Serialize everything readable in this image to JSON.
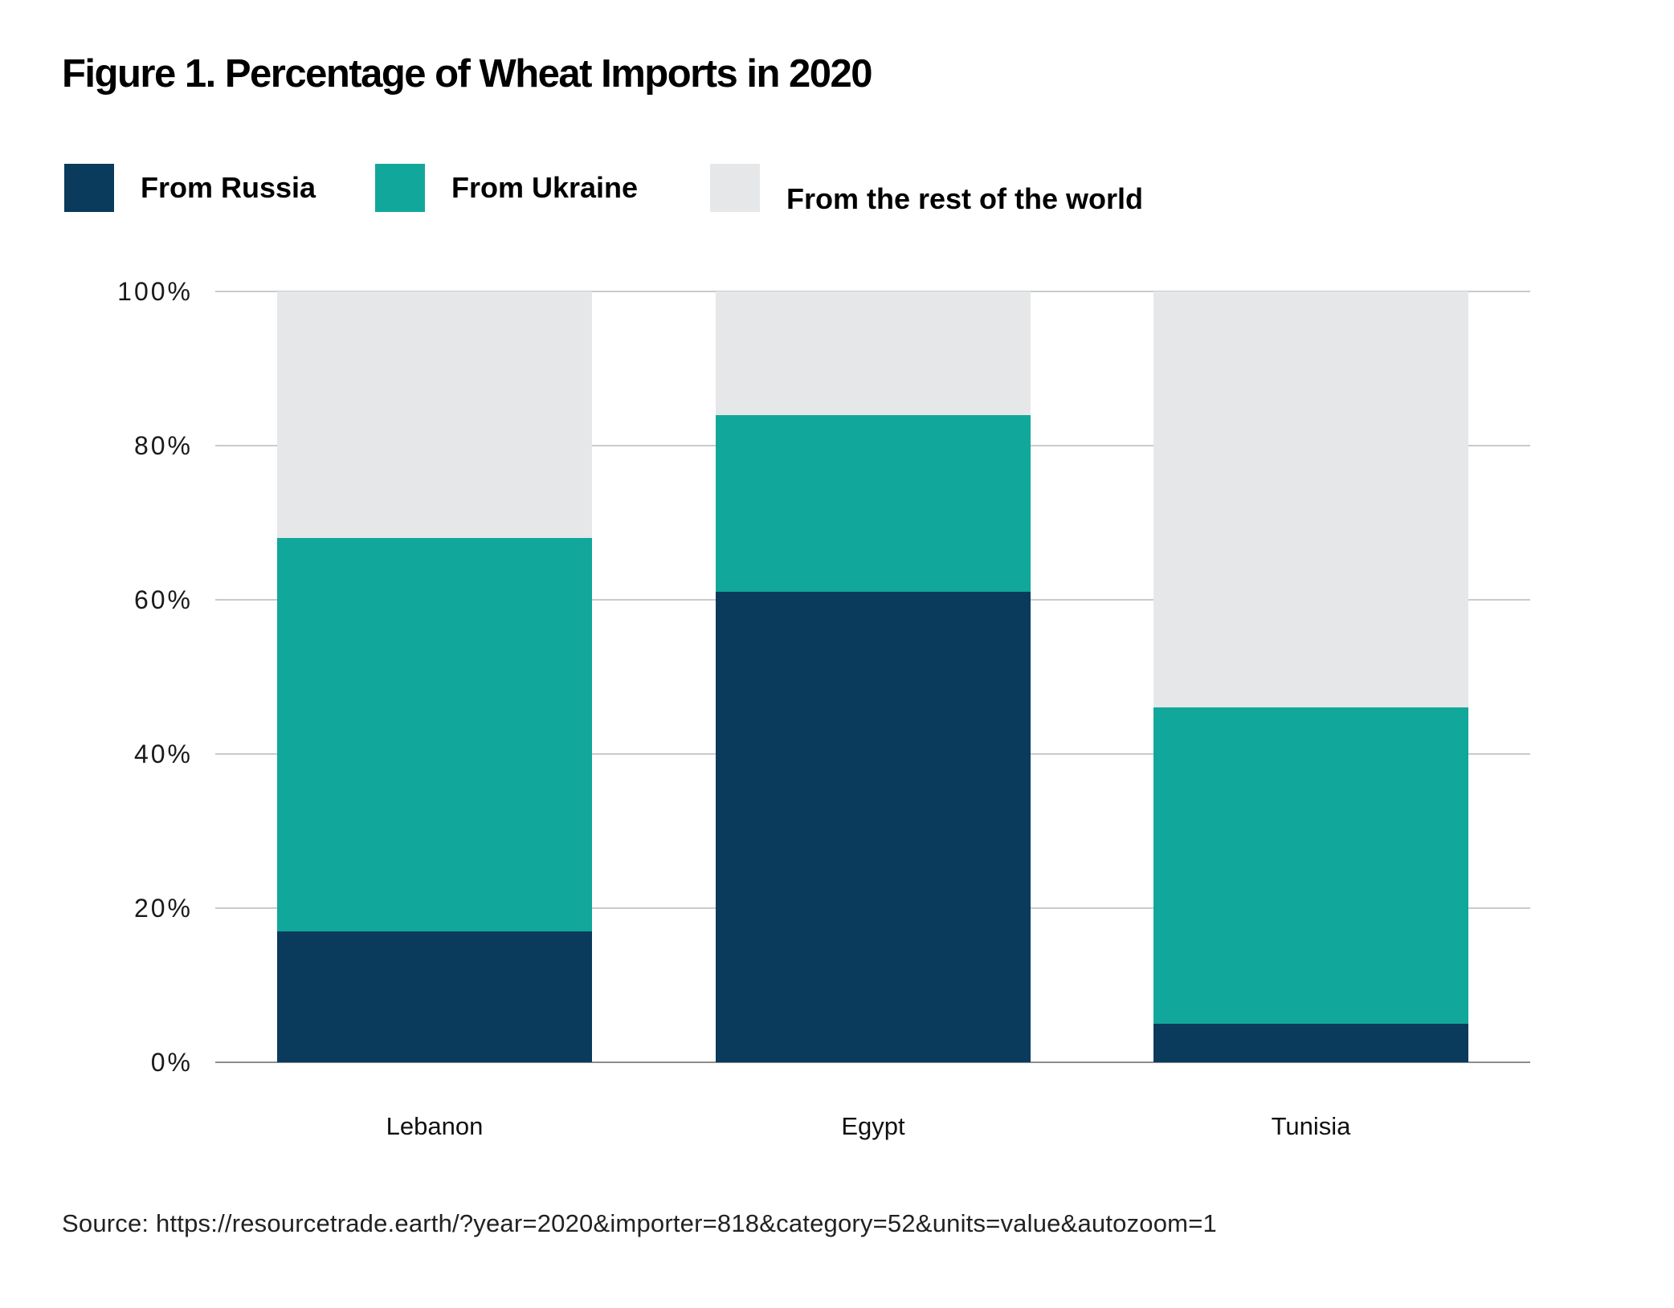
{
  "title": "Figure 1. Percentage of Wheat Imports in 2020",
  "source": "Source: https://resourcetrade.earth/?year=2020&importer=818&category=52&units=value&autozoom=1",
  "colors": {
    "russia": "#0a3a5c",
    "ukraine": "#12a79b",
    "rest_of_world": "#e6e7e8",
    "gridline": "#c9cbcb",
    "axis_line": "#8a8d90",
    "background": "#ffffff",
    "text": "#000000"
  },
  "chart_data": {
    "type": "bar",
    "stacked": true,
    "units": "percent",
    "categories": [
      "Lebanon",
      "Egypt",
      "Tunisia"
    ],
    "series": [
      {
        "name": "From Russia",
        "color": "#0a3a5c",
        "values": [
          17,
          61,
          5
        ]
      },
      {
        "name": "From Ukraine",
        "color": "#12a79b",
        "values": [
          51,
          23,
          41
        ]
      },
      {
        "name": "From the rest of the world",
        "color": "#e6e7e8",
        "values": [
          32,
          16,
          54
        ]
      }
    ],
    "title": "Figure 1. Percentage of Wheat Imports in 2020",
    "xlabel": "",
    "ylabel": "",
    "ylim": [
      0,
      100
    ],
    "yticks": [
      "0%",
      "20%",
      "40%",
      "60%",
      "80%",
      "100%"
    ],
    "grid": true,
    "legend_position": "top-left"
  }
}
